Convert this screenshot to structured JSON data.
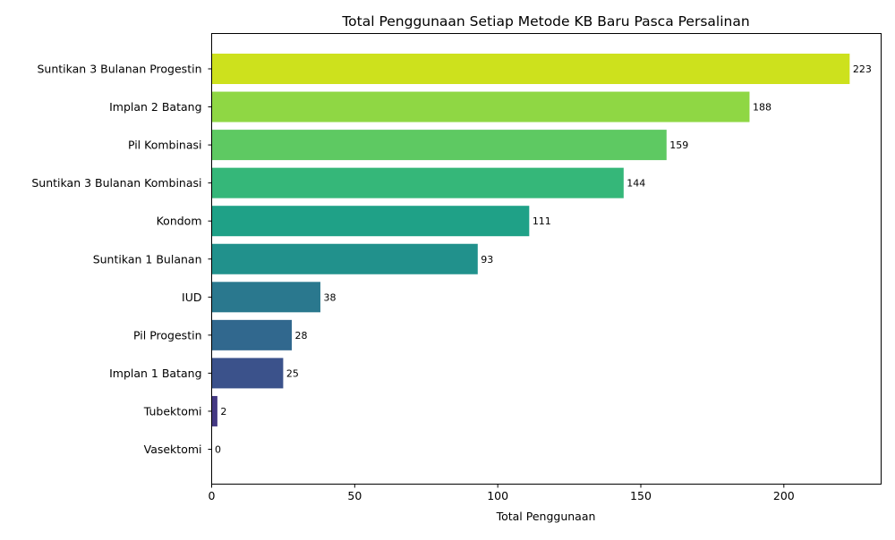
{
  "chart_data": {
    "type": "bar",
    "orientation": "horizontal",
    "title": "Total Penggunaan Setiap Metode KB Baru Pasca Persalinan",
    "xlabel": "Total Penggunaan",
    "ylabel": "",
    "xlim": [
      0,
      234
    ],
    "xticks": [
      0,
      50,
      100,
      150,
      200
    ],
    "grid": false,
    "categories": [
      "Suntikan 3 Bulanan Progestin",
      "Implan 2 Batang",
      "Pil Kombinasi",
      "Suntikan 3 Bulanan Kombinasi",
      "Kondom",
      "Suntikan 1 Bulanan",
      "IUD",
      "Pil Progestin",
      "Implan 1 Batang",
      "Tubektomi",
      "Vasektomi"
    ],
    "values": [
      223,
      188,
      159,
      144,
      111,
      93,
      38,
      28,
      25,
      2,
      0
    ],
    "colors": [
      "#cde11d",
      "#8fd744",
      "#5ec962",
      "#35b779",
      "#1fa187",
      "#21918c",
      "#2a788e",
      "#31688e",
      "#3b528b",
      "#443983",
      "#440154"
    ]
  }
}
